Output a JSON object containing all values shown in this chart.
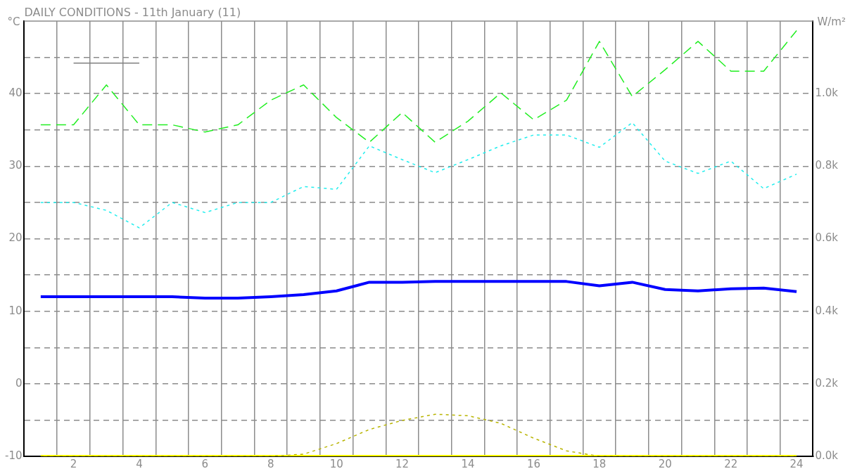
{
  "chart_data": {
    "type": "line",
    "title": "DAILY CONDITIONS - 11th January (11)",
    "ylabel": "°C",
    "y2label": "W/m²",
    "x": [
      1,
      2,
      3,
      4,
      5,
      6,
      7,
      8,
      9,
      10,
      11,
      12,
      13,
      14,
      15,
      16,
      17,
      18,
      19,
      20,
      21,
      22,
      23,
      24
    ],
    "xlim": [
      0.5,
      24.5
    ],
    "xticks": [
      {
        "value": 1.5,
        "label": null
      },
      {
        "value": 2,
        "label": "2"
      },
      {
        "value": 2.5,
        "label": null
      },
      {
        "value": 3.5,
        "label": null
      },
      {
        "value": 4,
        "label": "4"
      },
      {
        "value": 4.5,
        "label": null
      },
      {
        "value": 5.5,
        "label": null
      },
      {
        "value": 6,
        "label": "6"
      },
      {
        "value": 6.5,
        "label": null
      },
      {
        "value": 7.5,
        "label": null
      },
      {
        "value": 8,
        "label": "8"
      },
      {
        "value": 8.5,
        "label": null
      },
      {
        "value": 9.5,
        "label": null
      },
      {
        "value": 10,
        "label": "10"
      },
      {
        "value": 10.5,
        "label": null
      },
      {
        "value": 11.5,
        "label": null
      },
      {
        "value": 12,
        "label": "12"
      },
      {
        "value": 12.5,
        "label": null
      },
      {
        "value": 13.5,
        "label": null
      },
      {
        "value": 14,
        "label": "14"
      },
      {
        "value": 14.5,
        "label": null
      },
      {
        "value": 15.5,
        "label": null
      },
      {
        "value": 16,
        "label": "16"
      },
      {
        "value": 16.5,
        "label": null
      },
      {
        "value": 17.5,
        "label": null
      },
      {
        "value": 18,
        "label": "18"
      },
      {
        "value": 18.5,
        "label": null
      },
      {
        "value": 19.5,
        "label": null
      },
      {
        "value": 20,
        "label": "20"
      },
      {
        "value": 20.5,
        "label": null
      },
      {
        "value": 21.5,
        "label": null
      },
      {
        "value": 22,
        "label": "22"
      },
      {
        "value": 22.5,
        "label": null
      },
      {
        "value": 23.5,
        "label": null
      },
      {
        "value": 24,
        "label": "24"
      }
    ],
    "ylim": [
      -10,
      50
    ],
    "yticks": [
      -10,
      {
        "value": -5,
        "label": null
      },
      0,
      {
        "value": 5,
        "label": null
      },
      10,
      {
        "value": 15,
        "label": null
      },
      20,
      {
        "value": 25,
        "label": null
      },
      30,
      {
        "value": 35,
        "label": null
      },
      40,
      {
        "value": 45,
        "label": null
      }
    ],
    "y2lim": [
      0,
      1200
    ],
    "y2ticks": [
      {
        "value": 0,
        "label": "0.0k"
      },
      {
        "value": 200,
        "label": "0.2k"
      },
      {
        "value": 400,
        "label": "0.4k"
      },
      {
        "value": 600,
        "label": "0.6k"
      },
      {
        "value": 800,
        "label": "0.8k"
      },
      {
        "value": 1000,
        "label": "1.0k"
      }
    ],
    "grid": true,
    "legend": false,
    "marker": "none",
    "series": [
      {
        "color": "#808080",
        "line_style": "solid",
        "values": [
          null,
          44.2,
          44.2,
          44.2,
          null,
          null,
          null,
          null,
          null,
          null,
          null,
          null,
          null,
          null,
          null,
          null,
          null,
          null,
          null,
          null,
          null,
          null,
          null,
          null
        ]
      },
      {
        "color": "#22ee22",
        "line_style": "dashed",
        "values": [
          35.7,
          35.7,
          41.2,
          35.7,
          35.7,
          34.7,
          35.7,
          39.1,
          41.2,
          36.7,
          33.3,
          37.4,
          33.3,
          36.2,
          40.1,
          36.4,
          39.1,
          47.2,
          39.6,
          43.3,
          47.2,
          43.1,
          43.1,
          48.7
        ]
      },
      {
        "color": "#22eeee",
        "line_style": "dotted",
        "values": [
          25.0,
          25.0,
          23.9,
          21.5,
          25.0,
          23.6,
          25.0,
          25.0,
          27.2,
          26.8,
          32.8,
          30.9,
          29.1,
          30.9,
          32.8,
          34.3,
          34.3,
          32.6,
          36.0,
          30.7,
          29.0,
          30.7,
          26.9,
          28.9
        ]
      },
      {
        "color": "#0000ff",
        "line_style": "solid",
        "values": [
          12.0,
          12.0,
          12.0,
          12.0,
          12.0,
          11.8,
          11.8,
          12.0,
          12.3,
          12.8,
          14.0,
          14.0,
          14.1,
          14.1,
          14.1,
          14.1,
          14.1,
          13.5,
          14.0,
          13.0,
          12.8,
          13.1,
          13.2,
          12.7
        ]
      },
      {
        "color": "#b8b400",
        "line_style": "dotted",
        "axis": "y2",
        "values": [
          0,
          0,
          0,
          0,
          0,
          0,
          0,
          0,
          6,
          35,
          74,
          99,
          116,
          112,
          91,
          50,
          15,
          0,
          0,
          0,
          0,
          0,
          0,
          0
        ]
      },
      {
        "color": "#ffff00",
        "line_style": "solid",
        "axis": "y2",
        "values": [
          0,
          0,
          0,
          0,
          0,
          0,
          0,
          0,
          0,
          0,
          0,
          0,
          0,
          0,
          0,
          0,
          0,
          0,
          0,
          0,
          0,
          0,
          0,
          0
        ]
      }
    ]
  }
}
